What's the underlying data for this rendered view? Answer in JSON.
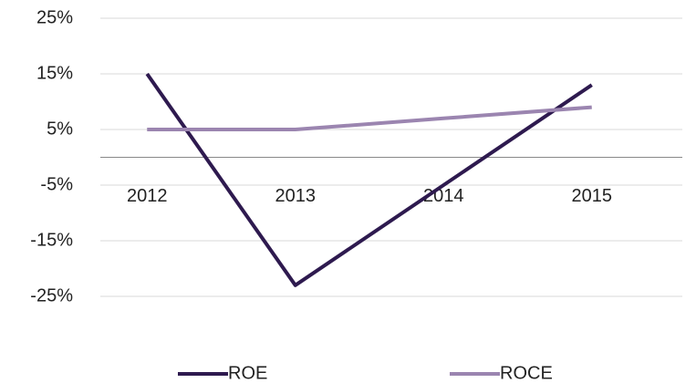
{
  "chart_data": {
    "type": "line",
    "categories": [
      "2012",
      "2013",
      "2014",
      "2015"
    ],
    "series": [
      {
        "name": "ROE",
        "color": "#2e1a4f",
        "values": [
          15,
          -23,
          -5,
          13
        ]
      },
      {
        "name": "ROCE",
        "color": "#9b85b0",
        "values": [
          5,
          5,
          7,
          9
        ]
      }
    ],
    "ylim": [
      -25,
      25
    ],
    "yticks": [
      {
        "value": -25,
        "label": "-25%"
      },
      {
        "value": -15,
        "label": "-15%"
      },
      {
        "value": -5,
        "label": "-5%"
      },
      {
        "value": 5,
        "label": "5%"
      },
      {
        "value": 15,
        "label": "15%"
      },
      {
        "value": 25,
        "label": "25%"
      }
    ],
    "grid": true,
    "legend": "bottom"
  }
}
